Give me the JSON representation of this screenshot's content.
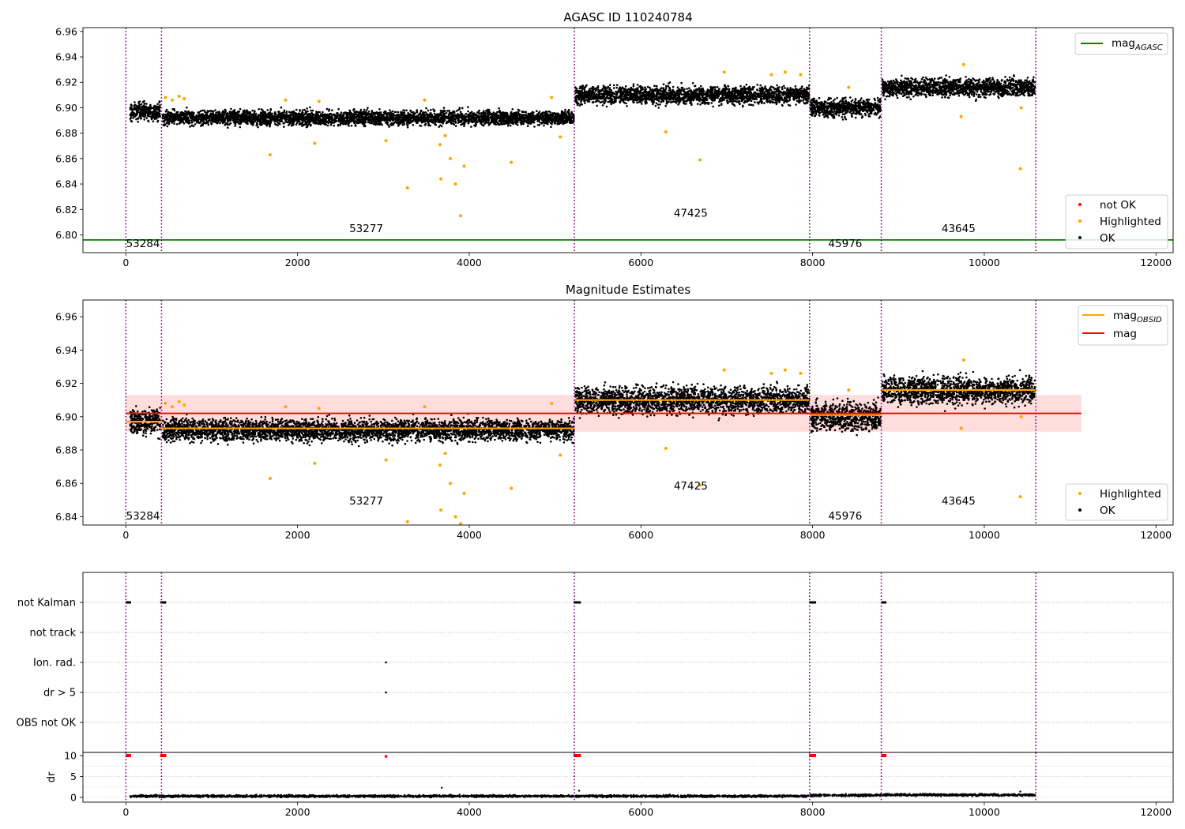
{
  "chart_data": [
    {
      "type": "scatter",
      "title": "AGASC ID 110240784",
      "xlim": [
        -500,
        12200
      ],
      "ylim": [
        6.786,
        6.963
      ],
      "x_ticks": [
        0,
        2000,
        4000,
        6000,
        8000,
        10000,
        12000
      ],
      "y_ticks": [
        6.8,
        6.82,
        6.84,
        6.86,
        6.88,
        6.9,
        6.92,
        6.94,
        6.96
      ],
      "obs_boundaries": [
        0,
        415,
        5225,
        7965,
        8800,
        10600
      ],
      "obsid_labels": [
        {
          "text": "53284",
          "x": 200,
          "y": 6.793
        },
        {
          "text": "53277",
          "x": 2800,
          "y": 6.805
        },
        {
          "text": "47425",
          "x": 6580,
          "y": 6.817
        },
        {
          "text": "45976",
          "x": 8380,
          "y": 6.793
        },
        {
          "text": "43645",
          "x": 9700,
          "y": 6.805
        }
      ],
      "reference_lines": [
        {
          "name": "mag",
          "subscript": "AGASC",
          "y": 6.796,
          "x_range": [
            -500,
            12200
          ],
          "color": "#008000"
        }
      ],
      "legend_top": [
        {
          "label": "mag",
          "subscript": "AGASC",
          "color": "#008000",
          "marker": "line"
        }
      ],
      "legend_bottom": [
        {
          "label": "not OK",
          "color": "#ff0000",
          "marker": "dot"
        },
        {
          "label": "Highlighted",
          "color": "#ffa500",
          "marker": "dot"
        },
        {
          "label": "OK",
          "color": "#000000",
          "marker": "dot"
        }
      ],
      "ok_segments": [
        {
          "x0": 50,
          "x1": 400,
          "mean": 6.897,
          "spread": 0.005
        },
        {
          "x0": 430,
          "x1": 5220,
          "mean": 6.892,
          "spread": 0.004
        },
        {
          "x0": 5235,
          "x1": 7960,
          "mean": 6.91,
          "spread": 0.005
        },
        {
          "x0": 7975,
          "x1": 8795,
          "mean": 6.9,
          "spread": 0.005
        },
        {
          "x0": 8810,
          "x1": 10590,
          "mean": 6.916,
          "spread": 0.005
        }
      ],
      "highlighted_points": [
        {
          "x": 460,
          "y": 6.908
        },
        {
          "x": 540,
          "y": 6.906
        },
        {
          "x": 620,
          "y": 6.909
        },
        {
          "x": 680,
          "y": 6.907
        },
        {
          "x": 1680,
          "y": 6.863
        },
        {
          "x": 1860,
          "y": 6.906
        },
        {
          "x": 2200,
          "y": 6.872
        },
        {
          "x": 2250,
          "y": 6.905
        },
        {
          "x": 3030,
          "y": 6.874
        },
        {
          "x": 3280,
          "y": 6.837
        },
        {
          "x": 3480,
          "y": 6.906
        },
        {
          "x": 3660,
          "y": 6.871
        },
        {
          "x": 3670,
          "y": 6.844
        },
        {
          "x": 3720,
          "y": 6.878
        },
        {
          "x": 3780,
          "y": 6.86
        },
        {
          "x": 3840,
          "y": 6.84
        },
        {
          "x": 3900,
          "y": 6.815
        },
        {
          "x": 3940,
          "y": 6.854
        },
        {
          "x": 4490,
          "y": 6.857
        },
        {
          "x": 4960,
          "y": 6.908
        },
        {
          "x": 5060,
          "y": 6.877
        },
        {
          "x": 6290,
          "y": 6.881
        },
        {
          "x": 6690,
          "y": 6.859
        },
        {
          "x": 6970,
          "y": 6.928
        },
        {
          "x": 7520,
          "y": 6.926
        },
        {
          "x": 7680,
          "y": 6.928
        },
        {
          "x": 7860,
          "y": 6.926
        },
        {
          "x": 8420,
          "y": 6.916
        },
        {
          "x": 9730,
          "y": 6.893
        },
        {
          "x": 9760,
          "y": 6.934
        },
        {
          "x": 10420,
          "y": 6.852
        },
        {
          "x": 10430,
          "y": 6.9
        }
      ]
    },
    {
      "type": "scatter",
      "title": "Magnitude Estimates",
      "xlim": [
        -500,
        12200
      ],
      "ylim": [
        6.835,
        6.97
      ],
      "x_ticks": [
        0,
        2000,
        4000,
        6000,
        8000,
        10000,
        12000
      ],
      "y_ticks": [
        6.84,
        6.86,
        6.88,
        6.9,
        6.92,
        6.94,
        6.96
      ],
      "obs_boundaries": [
        0,
        415,
        5225,
        7965,
        8800,
        10600
      ],
      "obsid_labels": [
        {
          "text": "53284",
          "x": 200,
          "y": 6.8405
        },
        {
          "text": "53277",
          "x": 2800,
          "y": 6.8495
        },
        {
          "text": "47425",
          "x": 6580,
          "y": 6.8585
        },
        {
          "text": "45976",
          "x": 8380,
          "y": 6.8405
        },
        {
          "text": "43645",
          "x": 9700,
          "y": 6.8495
        }
      ],
      "reference_lines": [
        {
          "name": "mag",
          "y": 6.902,
          "x_range": [
            0,
            11130
          ],
          "color": "#ff0000"
        }
      ],
      "mag_band": {
        "y0": 6.891,
        "y1": 6.913,
        "x_range": [
          0,
          11130
        ],
        "color": "#ffdddd"
      },
      "obsid_means": [
        {
          "x0": 0,
          "x1": 415,
          "y": 6.897
        },
        {
          "x0": 415,
          "x1": 5225,
          "y": 6.893
        },
        {
          "x0": 5225,
          "x1": 7965,
          "y": 6.91
        },
        {
          "x0": 7965,
          "x1": 8800,
          "y": 6.901
        },
        {
          "x0": 8800,
          "x1": 10600,
          "y": 6.916
        }
      ],
      "legend_top": [
        {
          "label": "mag",
          "subscript": "OBSID",
          "color": "#ffa500",
          "marker": "line"
        },
        {
          "label": "mag",
          "color": "#ff0000",
          "marker": "line"
        }
      ],
      "legend_bottom": [
        {
          "label": "Highlighted",
          "color": "#ffa500",
          "marker": "dot"
        },
        {
          "label": "OK",
          "color": "#000000",
          "marker": "dot"
        }
      ]
    },
    {
      "type": "scatter",
      "title": "",
      "xlim": [
        -500,
        12200
      ],
      "x_ticks": [
        0,
        2000,
        4000,
        6000,
        8000,
        10000,
        12000
      ],
      "obs_boundaries": [
        0,
        415,
        5225,
        7965,
        8800,
        10600
      ],
      "flag_categories": [
        "not Kalman",
        "not track",
        "Ion. rad.",
        "dr > 5",
        "OBS not OK"
      ],
      "flag_points": [
        {
          "flag": "not Kalman",
          "x0": 0,
          "x1": 60
        },
        {
          "flag": "not Kalman",
          "x0": 400,
          "x1": 470
        },
        {
          "flag": "not Kalman",
          "x0": 5215,
          "x1": 5300
        },
        {
          "flag": "not Kalman",
          "x0": 7960,
          "x1": 8040
        },
        {
          "flag": "not Kalman",
          "x0": 8800,
          "x1": 8860
        },
        {
          "flag": "Ion. rad.",
          "x0": 3030,
          "x1": 3030
        },
        {
          "flag": "dr > 5",
          "x0": 3030,
          "x1": 3030
        }
      ],
      "dr_ylabel": "dr",
      "dr_ylim": [
        -0.5,
        10.5
      ],
      "dr_ticks": [
        0,
        5,
        10
      ],
      "dr_high_points": [
        {
          "x0": 0,
          "x1": 60,
          "y": 10
        },
        {
          "x0": 400,
          "x1": 470,
          "y": 10
        },
        {
          "x0": 3030,
          "x1": 3030,
          "y": 9.8
        },
        {
          "x0": 5215,
          "x1": 5300,
          "y": 10
        },
        {
          "x0": 7960,
          "x1": 8040,
          "y": 10
        },
        {
          "x0": 8800,
          "x1": 8860,
          "y": 10
        }
      ],
      "dr_low_segments": [
        {
          "x0": 50,
          "x1": 5220,
          "y": 0.3
        },
        {
          "x0": 5235,
          "x1": 7960,
          "y": 0.3
        },
        {
          "x0": 7975,
          "x1": 8795,
          "y": 0.5
        },
        {
          "x0": 8810,
          "x1": 10590,
          "y": 0.6
        }
      ]
    }
  ]
}
